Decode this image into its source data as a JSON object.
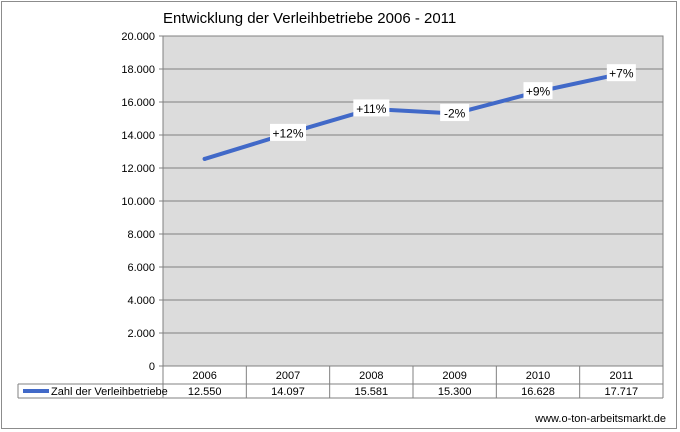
{
  "chart_data": {
    "type": "line",
    "title": "Entwicklung der Verleihbetriebe 2006 - 2011",
    "categories": [
      "2006",
      "2007",
      "2008",
      "2009",
      "2010",
      "2011"
    ],
    "series": [
      {
        "name": "Zahl der Verleihbetriebe",
        "values": [
          12550,
          14097,
          15581,
          15300,
          16628,
          17717
        ],
        "table_labels": [
          "12.550",
          "14.097",
          "15.581",
          "15.300",
          "16.628",
          "17.717"
        ],
        "color": "#4169c8"
      }
    ],
    "annotations": [
      "",
      "+12%",
      "+11%",
      "-2%",
      "+9%",
      "+7%"
    ],
    "ylim": [
      0,
      20000
    ],
    "yticks": [
      0,
      2000,
      4000,
      6000,
      8000,
      10000,
      12000,
      14000,
      16000,
      18000,
      20000
    ],
    "ytick_labels": [
      "0",
      "2.000",
      "4.000",
      "6.000",
      "8.000",
      "10.000",
      "12.000",
      "14.000",
      "16.000",
      "18.000",
      "20.000"
    ],
    "grid": true,
    "legend_placement": "data-table-left",
    "plot_background": "#dcdcdc",
    "xlabel": "",
    "ylabel": ""
  },
  "footer": {
    "source": "www.o-ton-arbeitsmarkt.de"
  }
}
